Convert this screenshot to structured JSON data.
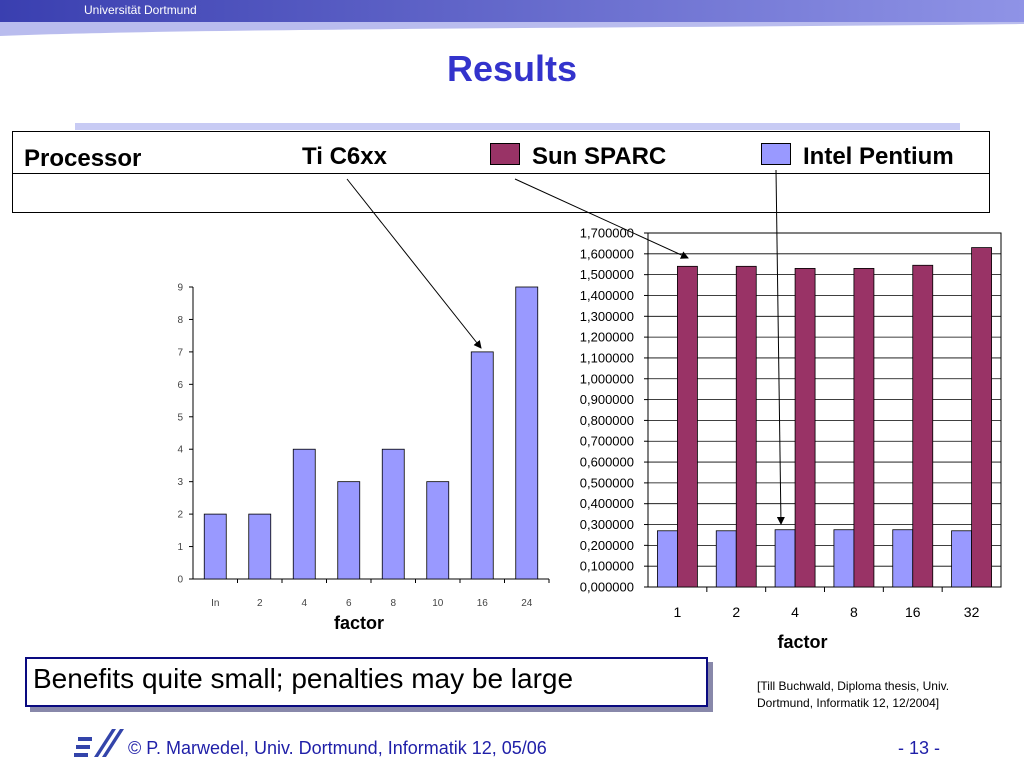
{
  "header": {
    "university": "Universität Dortmund"
  },
  "slide": {
    "title": "Results"
  },
  "legend": {
    "processor_label": "Processor",
    "ti_label": "Ti C6xx",
    "sun_label": "Sun SPARC",
    "intel_label": "Intel Pentium"
  },
  "colors": {
    "sun_sparc": "#993366",
    "intel_pentium": "#9999ff"
  },
  "callout": {
    "text": "Benefits quite small; penalties may be large"
  },
  "citation": {
    "line1": "[Till Buchwald, Diploma thesis, Univ.",
    "line2": "Dortmund, Informatik 12, 12/2004]"
  },
  "footer": {
    "author": "© P. Marwedel, Univ. Dortmund, Informatik 12, 05/06",
    "page": "- 13 -"
  },
  "chart_data": [
    {
      "type": "bar",
      "categories": [
        "In",
        "2",
        "4",
        "6",
        "8",
        "10",
        "16",
        "24"
      ],
      "series": [
        {
          "name": "Ti C6xx",
          "values": [
            2,
            2,
            4,
            3,
            4,
            3,
            7,
            9
          ]
        }
      ],
      "xlabel": "factor",
      "ylabel": "",
      "ylim": [
        0,
        9
      ],
      "yticks": [
        "0",
        "1",
        "2",
        "3",
        "4",
        "5",
        "6",
        "7",
        "8",
        "9"
      ],
      "grid": false
    },
    {
      "type": "bar",
      "categories": [
        "1",
        "2",
        "4",
        "8",
        "16",
        "32"
      ],
      "series": [
        {
          "name": "Intel Pentium",
          "values": [
            0.27,
            0.27,
            0.275,
            0.275,
            0.275,
            0.27
          ]
        },
        {
          "name": "Sun SPARC",
          "values": [
            1.54,
            1.54,
            1.53,
            1.53,
            1.545,
            1.63
          ]
        }
      ],
      "xlabel": "factor",
      "ylabel": "",
      "ylim": [
        0,
        1.7
      ],
      "yticks": [
        "0,000000",
        "0,100000",
        "0,200000",
        "0,300000",
        "0,400000",
        "0,500000",
        "0,600000",
        "0,700000",
        "0,800000",
        "0,900000",
        "1,000000",
        "1,100000",
        "1,200000",
        "1,300000",
        "1,400000",
        "1,500000",
        "1,600000",
        "1,700000"
      ],
      "grid": true
    }
  ]
}
